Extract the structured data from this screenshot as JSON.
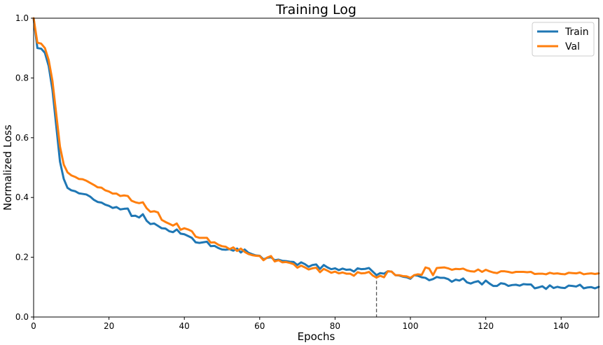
{
  "chart_data": {
    "type": "line",
    "title": "Training Log",
    "xlabel": "Epochs",
    "ylabel": "Normalized Loss",
    "xlim": [
      0,
      150
    ],
    "ylim": [
      0.0,
      1.0
    ],
    "xticks": [
      0,
      20,
      40,
      60,
      80,
      100,
      120,
      140
    ],
    "yticks": [
      0.0,
      0.2,
      0.4,
      0.6,
      0.8,
      1.0
    ],
    "xtick_labels": [
      "0",
      "20",
      "40",
      "60",
      "80",
      "100",
      "120",
      "140"
    ],
    "ytick_labels": [
      "0.0",
      "0.2",
      "0.4",
      "0.6",
      "0.8",
      "1.0"
    ],
    "grid": false,
    "legend_position": "top-right",
    "vline": {
      "x": 91,
      "style": "dashed",
      "color": "#555555"
    },
    "series": [
      {
        "name": "Train",
        "color": "#1f77b4",
        "points": [
          [
            0,
            1.0
          ],
          [
            1,
            0.9
          ],
          [
            2,
            0.898
          ],
          [
            3,
            0.884
          ],
          [
            4,
            0.84
          ],
          [
            5,
            0.76
          ],
          [
            6,
            0.64
          ],
          [
            7,
            0.52
          ],
          [
            8,
            0.462
          ],
          [
            9,
            0.432
          ],
          [
            10,
            0.424
          ],
          [
            11,
            0.421
          ],
          [
            12,
            0.414
          ],
          [
            13,
            0.412
          ],
          [
            14,
            0.41
          ],
          [
            15,
            0.403
          ],
          [
            16,
            0.392
          ],
          [
            17,
            0.385
          ],
          [
            18,
            0.383
          ],
          [
            19,
            0.376
          ],
          [
            20,
            0.372
          ],
          [
            21,
            0.365
          ],
          [
            22,
            0.368
          ],
          [
            23,
            0.36
          ],
          [
            24,
            0.362
          ],
          [
            25,
            0.363
          ],
          [
            26,
            0.338
          ],
          [
            27,
            0.339
          ],
          [
            28,
            0.333
          ],
          [
            29,
            0.344
          ],
          [
            30,
            0.322
          ],
          [
            31,
            0.311
          ],
          [
            32,
            0.313
          ],
          [
            33,
            0.305
          ],
          [
            34,
            0.297
          ],
          [
            35,
            0.296
          ],
          [
            36,
            0.287
          ],
          [
            37,
            0.284
          ],
          [
            38,
            0.293
          ],
          [
            39,
            0.279
          ],
          [
            40,
            0.277
          ],
          [
            41,
            0.271
          ],
          [
            42,
            0.265
          ],
          [
            43,
            0.25
          ],
          [
            44,
            0.248
          ],
          [
            45,
            0.25
          ],
          [
            46,
            0.252
          ],
          [
            47,
            0.237
          ],
          [
            48,
            0.238
          ],
          [
            49,
            0.231
          ],
          [
            50,
            0.226
          ],
          [
            51,
            0.225
          ],
          [
            52,
            0.227
          ],
          [
            53,
            0.222
          ],
          [
            54,
            0.229
          ],
          [
            55,
            0.216
          ],
          [
            56,
            0.226
          ],
          [
            57,
            0.215
          ],
          [
            58,
            0.21
          ],
          [
            59,
            0.206
          ],
          [
            60,
            0.205
          ],
          [
            61,
            0.193
          ],
          [
            62,
            0.198
          ],
          [
            63,
            0.2
          ],
          [
            64,
            0.19
          ],
          [
            65,
            0.192
          ],
          [
            66,
            0.188
          ],
          [
            67,
            0.187
          ],
          [
            68,
            0.185
          ],
          [
            69,
            0.184
          ],
          [
            70,
            0.174
          ],
          [
            71,
            0.183
          ],
          [
            72,
            0.177
          ],
          [
            73,
            0.168
          ],
          [
            74,
            0.174
          ],
          [
            75,
            0.176
          ],
          [
            76,
            0.161
          ],
          [
            77,
            0.174
          ],
          [
            78,
            0.166
          ],
          [
            79,
            0.16
          ],
          [
            80,
            0.163
          ],
          [
            81,
            0.157
          ],
          [
            82,
            0.162
          ],
          [
            83,
            0.158
          ],
          [
            84,
            0.159
          ],
          [
            85,
            0.152
          ],
          [
            86,
            0.163
          ],
          [
            87,
            0.16
          ],
          [
            88,
            0.161
          ],
          [
            89,
            0.164
          ],
          [
            90,
            0.152
          ],
          [
            91,
            0.14
          ],
          [
            92,
            0.147
          ],
          [
            93,
            0.145
          ],
          [
            94,
            0.153
          ],
          [
            95,
            0.152
          ],
          [
            96,
            0.14
          ],
          [
            97,
            0.139
          ],
          [
            98,
            0.135
          ],
          [
            99,
            0.133
          ],
          [
            100,
            0.128
          ],
          [
            101,
            0.14
          ],
          [
            102,
            0.138
          ],
          [
            103,
            0.133
          ],
          [
            104,
            0.131
          ],
          [
            105,
            0.123
          ],
          [
            106,
            0.127
          ],
          [
            107,
            0.134
          ],
          [
            108,
            0.131
          ],
          [
            109,
            0.131
          ],
          [
            110,
            0.127
          ],
          [
            111,
            0.118
          ],
          [
            112,
            0.125
          ],
          [
            113,
            0.122
          ],
          [
            114,
            0.129
          ],
          [
            115,
            0.116
          ],
          [
            116,
            0.112
          ],
          [
            117,
            0.117
          ],
          [
            118,
            0.12
          ],
          [
            119,
            0.109
          ],
          [
            120,
            0.122
          ],
          [
            121,
            0.112
          ],
          [
            122,
            0.104
          ],
          [
            123,
            0.104
          ],
          [
            124,
            0.113
          ],
          [
            125,
            0.111
          ],
          [
            126,
            0.104
          ],
          [
            127,
            0.107
          ],
          [
            128,
            0.108
          ],
          [
            129,
            0.105
          ],
          [
            130,
            0.11
          ],
          [
            131,
            0.109
          ],
          [
            132,
            0.109
          ],
          [
            133,
            0.096
          ],
          [
            134,
            0.099
          ],
          [
            135,
            0.103
          ],
          [
            136,
            0.094
          ],
          [
            137,
            0.106
          ],
          [
            138,
            0.097
          ],
          [
            139,
            0.101
          ],
          [
            140,
            0.098
          ],
          [
            141,
            0.097
          ],
          [
            142,
            0.105
          ],
          [
            143,
            0.104
          ],
          [
            144,
            0.102
          ],
          [
            145,
            0.108
          ],
          [
            146,
            0.096
          ],
          [
            147,
            0.099
          ],
          [
            148,
            0.1
          ],
          [
            149,
            0.096
          ],
          [
            150,
            0.101
          ]
        ]
      },
      {
        "name": "Val",
        "color": "#ff7f0e",
        "points": [
          [
            0,
            1.0
          ],
          [
            1,
            0.918
          ],
          [
            2,
            0.915
          ],
          [
            3,
            0.9
          ],
          [
            4,
            0.86
          ],
          [
            5,
            0.79
          ],
          [
            6,
            0.68
          ],
          [
            7,
            0.57
          ],
          [
            8,
            0.51
          ],
          [
            9,
            0.484
          ],
          [
            10,
            0.474
          ],
          [
            11,
            0.469
          ],
          [
            12,
            0.462
          ],
          [
            13,
            0.461
          ],
          [
            14,
            0.456
          ],
          [
            15,
            0.449
          ],
          [
            16,
            0.442
          ],
          [
            17,
            0.434
          ],
          [
            18,
            0.433
          ],
          [
            19,
            0.424
          ],
          [
            20,
            0.42
          ],
          [
            21,
            0.413
          ],
          [
            22,
            0.413
          ],
          [
            23,
            0.405
          ],
          [
            24,
            0.407
          ],
          [
            25,
            0.405
          ],
          [
            26,
            0.389
          ],
          [
            27,
            0.384
          ],
          [
            28,
            0.381
          ],
          [
            29,
            0.384
          ],
          [
            30,
            0.364
          ],
          [
            31,
            0.352
          ],
          [
            32,
            0.354
          ],
          [
            33,
            0.35
          ],
          [
            34,
            0.325
          ],
          [
            35,
            0.318
          ],
          [
            36,
            0.312
          ],
          [
            37,
            0.306
          ],
          [
            38,
            0.313
          ],
          [
            39,
            0.292
          ],
          [
            40,
            0.297
          ],
          [
            41,
            0.293
          ],
          [
            42,
            0.287
          ],
          [
            43,
            0.269
          ],
          [
            44,
            0.265
          ],
          [
            45,
            0.265
          ],
          [
            46,
            0.265
          ],
          [
            47,
            0.249
          ],
          [
            48,
            0.25
          ],
          [
            49,
            0.242
          ],
          [
            50,
            0.237
          ],
          [
            51,
            0.235
          ],
          [
            52,
            0.227
          ],
          [
            53,
            0.233
          ],
          [
            54,
            0.221
          ],
          [
            55,
            0.229
          ],
          [
            56,
            0.218
          ],
          [
            57,
            0.211
          ],
          [
            58,
            0.207
          ],
          [
            59,
            0.205
          ],
          [
            60,
            0.204
          ],
          [
            61,
            0.19
          ],
          [
            62,
            0.199
          ],
          [
            63,
            0.204
          ],
          [
            64,
            0.186
          ],
          [
            65,
            0.19
          ],
          [
            66,
            0.183
          ],
          [
            67,
            0.184
          ],
          [
            68,
            0.181
          ],
          [
            69,
            0.177
          ],
          [
            70,
            0.165
          ],
          [
            71,
            0.172
          ],
          [
            72,
            0.166
          ],
          [
            73,
            0.159
          ],
          [
            74,
            0.163
          ],
          [
            75,
            0.165
          ],
          [
            76,
            0.15
          ],
          [
            77,
            0.161
          ],
          [
            78,
            0.155
          ],
          [
            79,
            0.148
          ],
          [
            80,
            0.152
          ],
          [
            81,
            0.146
          ],
          [
            82,
            0.149
          ],
          [
            83,
            0.145
          ],
          [
            84,
            0.145
          ],
          [
            85,
            0.138
          ],
          [
            86,
            0.15
          ],
          [
            87,
            0.146
          ],
          [
            88,
            0.147
          ],
          [
            89,
            0.151
          ],
          [
            90,
            0.139
          ],
          [
            91,
            0.132
          ],
          [
            92,
            0.138
          ],
          [
            93,
            0.133
          ],
          [
            94,
            0.153
          ],
          [
            95,
            0.152
          ],
          [
            96,
            0.14
          ],
          [
            97,
            0.14
          ],
          [
            98,
            0.137
          ],
          [
            99,
            0.136
          ],
          [
            100,
            0.131
          ],
          [
            101,
            0.14
          ],
          [
            102,
            0.143
          ],
          [
            103,
            0.141
          ],
          [
            104,
            0.166
          ],
          [
            105,
            0.162
          ],
          [
            106,
            0.14
          ],
          [
            107,
            0.164
          ],
          [
            108,
            0.165
          ],
          [
            109,
            0.166
          ],
          [
            110,
            0.163
          ],
          [
            111,
            0.158
          ],
          [
            112,
            0.161
          ],
          [
            113,
            0.16
          ],
          [
            114,
            0.162
          ],
          [
            115,
            0.156
          ],
          [
            116,
            0.153
          ],
          [
            117,
            0.152
          ],
          [
            118,
            0.159
          ],
          [
            119,
            0.151
          ],
          [
            120,
            0.158
          ],
          [
            121,
            0.153
          ],
          [
            122,
            0.149
          ],
          [
            123,
            0.147
          ],
          [
            124,
            0.153
          ],
          [
            125,
            0.153
          ],
          [
            126,
            0.151
          ],
          [
            127,
            0.148
          ],
          [
            128,
            0.151
          ],
          [
            129,
            0.151
          ],
          [
            130,
            0.151
          ],
          [
            131,
            0.15
          ],
          [
            132,
            0.151
          ],
          [
            133,
            0.144
          ],
          [
            134,
            0.145
          ],
          [
            135,
            0.145
          ],
          [
            136,
            0.143
          ],
          [
            137,
            0.148
          ],
          [
            138,
            0.145
          ],
          [
            139,
            0.146
          ],
          [
            140,
            0.144
          ],
          [
            141,
            0.143
          ],
          [
            142,
            0.148
          ],
          [
            143,
            0.147
          ],
          [
            144,
            0.146
          ],
          [
            145,
            0.149
          ],
          [
            146,
            0.143
          ],
          [
            147,
            0.145
          ],
          [
            148,
            0.146
          ],
          [
            149,
            0.144
          ],
          [
            150,
            0.146
          ]
        ]
      }
    ]
  }
}
